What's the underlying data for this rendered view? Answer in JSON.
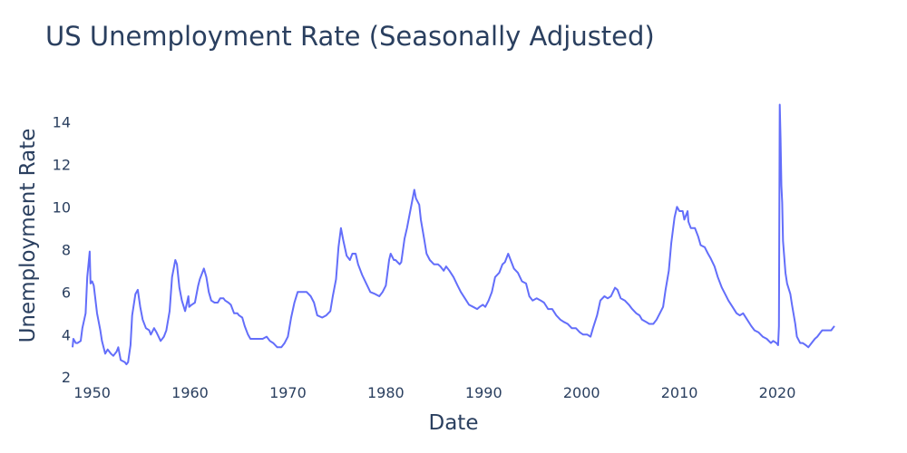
{
  "chart_data": {
    "type": "line",
    "title": "US Unemployment Rate (Seasonally Adjusted)",
    "xlabel": "Date",
    "ylabel": "Unemployment Rate",
    "x_ticks": [
      "1950",
      "1960",
      "1970",
      "1980",
      "1990",
      "2000",
      "2010",
      "2020"
    ],
    "y_ticks": [
      "2",
      "4",
      "6",
      "8",
      "10",
      "12",
      "14"
    ],
    "xlim": [
      "1948-01",
      "2025-11"
    ],
    "ylim": [
      1.84,
      15.46
    ],
    "grid": false,
    "line_color": "#636efa",
    "text_color": "#2a3f5f",
    "points": [
      [
        "1948-01",
        3.4
      ],
      [
        "1948-02",
        3.8
      ],
      [
        "1948-05",
        3.6
      ],
      [
        "1948-07",
        3.6
      ],
      [
        "1948-11",
        3.7
      ],
      [
        "1949-01",
        4.3
      ],
      [
        "1949-05",
        5.0
      ],
      [
        "1949-07",
        6.7
      ],
      [
        "1949-10",
        7.9
      ],
      [
        "1949-11",
        6.4
      ],
      [
        "1950-01",
        6.5
      ],
      [
        "1950-03",
        6.3
      ],
      [
        "1950-07",
        5.0
      ],
      [
        "1950-11",
        4.2
      ],
      [
        "1951-01",
        3.7
      ],
      [
        "1951-05",
        3.1
      ],
      [
        "1951-08",
        3.3
      ],
      [
        "1951-12",
        3.1
      ],
      [
        "1952-03",
        3.0
      ],
      [
        "1952-07",
        3.2
      ],
      [
        "1952-09",
        3.4
      ],
      [
        "1952-12",
        2.8
      ],
      [
        "1953-05",
        2.7
      ],
      [
        "1953-07",
        2.6
      ],
      [
        "1953-09",
        2.7
      ],
      [
        "1953-12",
        3.5
      ],
      [
        "1954-02",
        4.9
      ],
      [
        "1954-06",
        5.9
      ],
      [
        "1954-09",
        6.1
      ],
      [
        "1954-12",
        5.3
      ],
      [
        "1955-03",
        4.7
      ],
      [
        "1955-07",
        4.3
      ],
      [
        "1955-11",
        4.2
      ],
      [
        "1956-01",
        4.0
      ],
      [
        "1956-05",
        4.3
      ],
      [
        "1956-08",
        4.1
      ],
      [
        "1957-01",
        3.7
      ],
      [
        "1957-05",
        3.9
      ],
      [
        "1957-08",
        4.2
      ],
      [
        "1957-12",
        5.1
      ],
      [
        "1958-03",
        6.7
      ],
      [
        "1958-07",
        7.5
      ],
      [
        "1958-09",
        7.3
      ],
      [
        "1958-12",
        6.2
      ],
      [
        "1959-03",
        5.6
      ],
      [
        "1959-07",
        5.1
      ],
      [
        "1959-11",
        5.8
      ],
      [
        "1959-12",
        5.3
      ],
      [
        "1960-03",
        5.4
      ],
      [
        "1960-07",
        5.5
      ],
      [
        "1960-11",
        6.3
      ],
      [
        "1961-01",
        6.6
      ],
      [
        "1961-06",
        7.1
      ],
      [
        "1961-09",
        6.7
      ],
      [
        "1961-12",
        6.0
      ],
      [
        "1962-03",
        5.6
      ],
      [
        "1962-07",
        5.5
      ],
      [
        "1962-11",
        5.5
      ],
      [
        "1963-02",
        5.7
      ],
      [
        "1963-06",
        5.7
      ],
      [
        "1963-08",
        5.6
      ],
      [
        "1963-12",
        5.5
      ],
      [
        "1964-03",
        5.4
      ],
      [
        "1964-07",
        5.0
      ],
      [
        "1964-11",
        5.0
      ],
      [
        "1965-01",
        4.9
      ],
      [
        "1965-05",
        4.8
      ],
      [
        "1965-08",
        4.4
      ],
      [
        "1965-12",
        4.0
      ],
      [
        "1966-03",
        3.8
      ],
      [
        "1966-08",
        3.8
      ],
      [
        "1967-01",
        3.8
      ],
      [
        "1967-06",
        3.8
      ],
      [
        "1967-11",
        3.9
      ],
      [
        "1968-03",
        3.7
      ],
      [
        "1968-07",
        3.6
      ],
      [
        "1968-12",
        3.4
      ],
      [
        "1969-05",
        3.4
      ],
      [
        "1969-09",
        3.6
      ],
      [
        "1970-01",
        3.9
      ],
      [
        "1970-05",
        4.8
      ],
      [
        "1970-09",
        5.5
      ],
      [
        "1971-01",
        6.0
      ],
      [
        "1971-07",
        6.0
      ],
      [
        "1971-12",
        6.0
      ],
      [
        "1972-05",
        5.8
      ],
      [
        "1972-09",
        5.5
      ],
      [
        "1973-01",
        4.9
      ],
      [
        "1973-07",
        4.8
      ],
      [
        "1973-12",
        4.9
      ],
      [
        "1974-05",
        5.1
      ],
      [
        "1974-08",
        5.8
      ],
      [
        "1974-12",
        6.6
      ],
      [
        "1975-03",
        8.1
      ],
      [
        "1975-06",
        9.0
      ],
      [
        "1975-09",
        8.4
      ],
      [
        "1976-01",
        7.7
      ],
      [
        "1976-05",
        7.5
      ],
      [
        "1976-08",
        7.8
      ],
      [
        "1976-12",
        7.8
      ],
      [
        "1977-03",
        7.3
      ],
      [
        "1977-08",
        6.8
      ],
      [
        "1978-01",
        6.4
      ],
      [
        "1978-06",
        6.0
      ],
      [
        "1978-12",
        5.9
      ],
      [
        "1979-05",
        5.8
      ],
      [
        "1979-09",
        6.0
      ],
      [
        "1980-01",
        6.3
      ],
      [
        "1980-05",
        7.5
      ],
      [
        "1980-07",
        7.8
      ],
      [
        "1980-11",
        7.5
      ],
      [
        "1981-01",
        7.5
      ],
      [
        "1981-06",
        7.3
      ],
      [
        "1981-08",
        7.4
      ],
      [
        "1981-12",
        8.5
      ],
      [
        "1982-03",
        9.0
      ],
      [
        "1982-07",
        9.8
      ],
      [
        "1982-12",
        10.8
      ],
      [
        "1983-02",
        10.4
      ],
      [
        "1983-06",
        10.1
      ],
      [
        "1983-08",
        9.4
      ],
      [
        "1983-12",
        8.5
      ],
      [
        "1984-03",
        7.8
      ],
      [
        "1984-07",
        7.5
      ],
      [
        "1984-12",
        7.3
      ],
      [
        "1985-05",
        7.3
      ],
      [
        "1985-08",
        7.2
      ],
      [
        "1985-12",
        7.0
      ],
      [
        "1986-03",
        7.2
      ],
      [
        "1986-07",
        7.0
      ],
      [
        "1986-12",
        6.7
      ],
      [
        "1987-05",
        6.3
      ],
      [
        "1987-09",
        6.0
      ],
      [
        "1988-02",
        5.7
      ],
      [
        "1988-07",
        5.4
      ],
      [
        "1988-12",
        5.3
      ],
      [
        "1989-05",
        5.2
      ],
      [
        "1989-08",
        5.3
      ],
      [
        "1989-12",
        5.4
      ],
      [
        "1990-03",
        5.3
      ],
      [
        "1990-07",
        5.6
      ],
      [
        "1990-11",
        6.0
      ],
      [
        "1991-03",
        6.7
      ],
      [
        "1991-08",
        6.9
      ],
      [
        "1991-12",
        7.3
      ],
      [
        "1992-03",
        7.4
      ],
      [
        "1992-07",
        7.8
      ],
      [
        "1992-11",
        7.4
      ],
      [
        "1993-02",
        7.1
      ],
      [
        "1993-07",
        6.9
      ],
      [
        "1993-12",
        6.5
      ],
      [
        "1994-05",
        6.4
      ],
      [
        "1994-09",
        5.8
      ],
      [
        "1995-01",
        5.6
      ],
      [
        "1995-06",
        5.7
      ],
      [
        "1995-11",
        5.6
      ],
      [
        "1996-03",
        5.5
      ],
      [
        "1996-08",
        5.2
      ],
      [
        "1997-01",
        5.2
      ],
      [
        "1997-06",
        4.9
      ],
      [
        "1997-11",
        4.7
      ],
      [
        "1998-03",
        4.6
      ],
      [
        "1998-08",
        4.5
      ],
      [
        "1999-01",
        4.3
      ],
      [
        "1999-06",
        4.3
      ],
      [
        "1999-11",
        4.1
      ],
      [
        "2000-03",
        4.0
      ],
      [
        "2000-08",
        4.0
      ],
      [
        "2000-12",
        3.9
      ],
      [
        "2001-03",
        4.3
      ],
      [
        "2001-08",
        4.9
      ],
      [
        "2001-12",
        5.6
      ],
      [
        "2002-05",
        5.8
      ],
      [
        "2002-09",
        5.7
      ],
      [
        "2003-01",
        5.8
      ],
      [
        "2003-06",
        6.2
      ],
      [
        "2003-09",
        6.1
      ],
      [
        "2004-01",
        5.7
      ],
      [
        "2004-06",
        5.6
      ],
      [
        "2004-11",
        5.4
      ],
      [
        "2005-03",
        5.2
      ],
      [
        "2005-08",
        5.0
      ],
      [
        "2005-12",
        4.9
      ],
      [
        "2006-03",
        4.7
      ],
      [
        "2006-08",
        4.6
      ],
      [
        "2006-12",
        4.5
      ],
      [
        "2007-05",
        4.5
      ],
      [
        "2007-09",
        4.7
      ],
      [
        "2008-01",
        5.0
      ],
      [
        "2008-05",
        5.3
      ],
      [
        "2008-08",
        6.1
      ],
      [
        "2008-12",
        7.0
      ],
      [
        "2009-03",
        8.3
      ],
      [
        "2009-07",
        9.5
      ],
      [
        "2009-10",
        10.0
      ],
      [
        "2010-01",
        9.8
      ],
      [
        "2010-05",
        9.8
      ],
      [
        "2010-07",
        9.4
      ],
      [
        "2010-11",
        9.8
      ],
      [
        "2010-12",
        9.3
      ],
      [
        "2011-03",
        9.0
      ],
      [
        "2011-08",
        9.0
      ],
      [
        "2011-12",
        8.6
      ],
      [
        "2012-03",
        8.2
      ],
      [
        "2012-08",
        8.1
      ],
      [
        "2012-12",
        7.8
      ],
      [
        "2013-03",
        7.6
      ],
      [
        "2013-08",
        7.2
      ],
      [
        "2013-12",
        6.7
      ],
      [
        "2014-05",
        6.2
      ],
      [
        "2014-09",
        5.9
      ],
      [
        "2015-01",
        5.6
      ],
      [
        "2015-06",
        5.3
      ],
      [
        "2015-11",
        5.0
      ],
      [
        "2016-03",
        4.9
      ],
      [
        "2016-07",
        5.0
      ],
      [
        "2016-12",
        4.7
      ],
      [
        "2017-05",
        4.4
      ],
      [
        "2017-09",
        4.2
      ],
      [
        "2018-02",
        4.1
      ],
      [
        "2018-07",
        3.9
      ],
      [
        "2018-12",
        3.8
      ],
      [
        "2019-05",
        3.6
      ],
      [
        "2019-08",
        3.7
      ],
      [
        "2019-12",
        3.6
      ],
      [
        "2020-02",
        3.5
      ],
      [
        "2020-03",
        4.4
      ],
      [
        "2020-04",
        14.8
      ],
      [
        "2020-05",
        13.2
      ],
      [
        "2020-06",
        11.0
      ],
      [
        "2020-07",
        10.2
      ],
      [
        "2020-08",
        8.4
      ],
      [
        "2020-11",
        6.9
      ],
      [
        "2021-01",
        6.4
      ],
      [
        "2021-05",
        5.9
      ],
      [
        "2021-07",
        5.4
      ],
      [
        "2021-11",
        4.5
      ],
      [
        "2022-01",
        3.9
      ],
      [
        "2022-05",
        3.6
      ],
      [
        "2022-08",
        3.6
      ],
      [
        "2022-12",
        3.5
      ],
      [
        "2023-03",
        3.4
      ],
      [
        "2023-07",
        3.6
      ],
      [
        "2023-11",
        3.8
      ],
      [
        "2024-02",
        3.9
      ],
      [
        "2024-06",
        4.1
      ],
      [
        "2024-08",
        4.2
      ],
      [
        "2024-12",
        4.2
      ],
      [
        "2025-03",
        4.2
      ],
      [
        "2025-07",
        4.2
      ],
      [
        "2025-09",
        4.3
      ],
      [
        "2025-11",
        4.4
      ]
    ]
  }
}
